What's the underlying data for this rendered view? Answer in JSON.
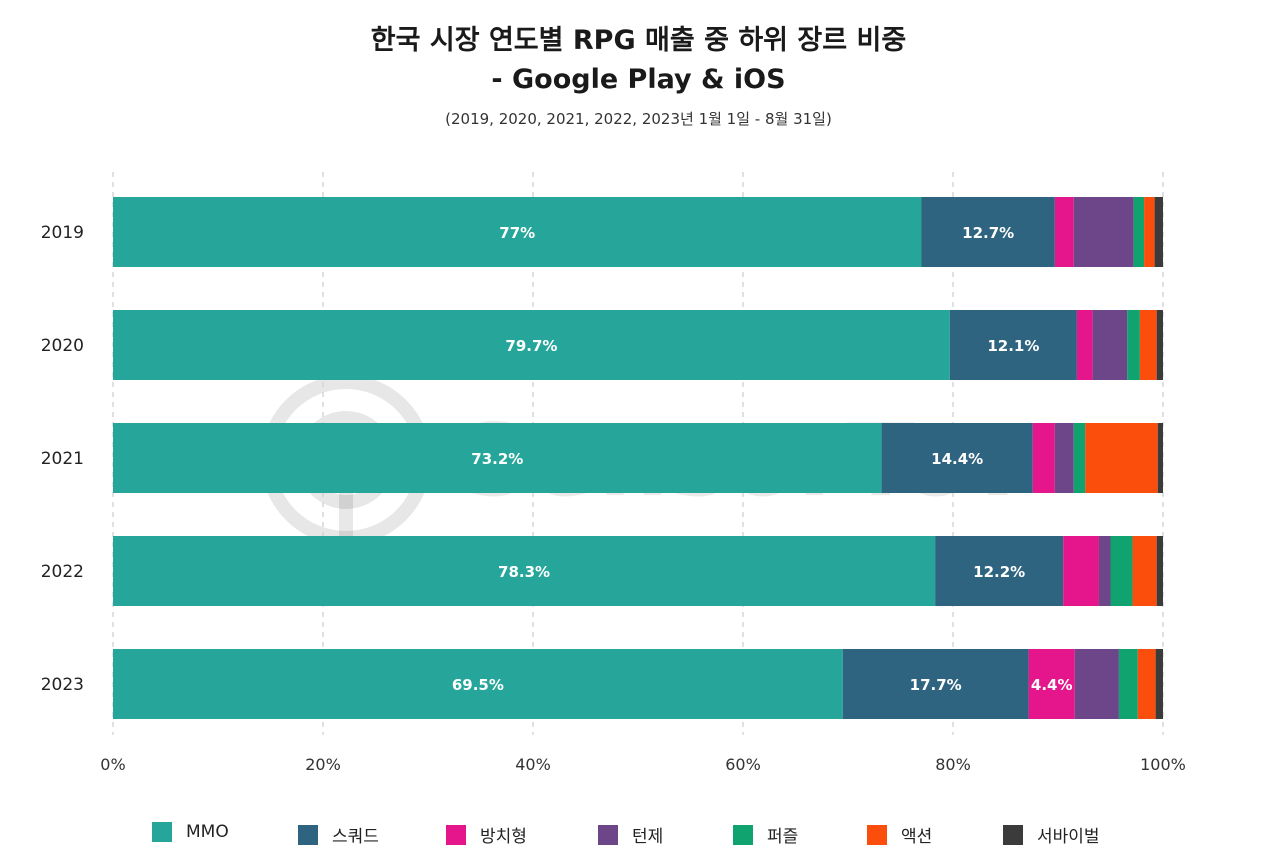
{
  "title_line1": "한국 시장 연도별 RPG 매출 중 하위 장르 비중",
  "title_line2": "- Google Play & iOS",
  "subtitle": "(2019, 2020, 2021, 2022, 2023년 1월 1일 - 8월 31일)",
  "watermark": "SensorTower",
  "chart_data": {
    "type": "bar",
    "orientation": "horizontal",
    "stacked": true,
    "categories": [
      "2019",
      "2020",
      "2021",
      "2022",
      "2023"
    ],
    "series": [
      {
        "name": "MMO",
        "color": "#26a69a",
        "values": [
          77.0,
          79.7,
          73.2,
          78.3,
          69.5
        ]
      },
      {
        "name": "스쿼드",
        "color": "#2e6480",
        "values": [
          12.7,
          12.1,
          14.4,
          12.2,
          17.7
        ]
      },
      {
        "name": "방치형",
        "color": "#e5168b",
        "values": [
          1.8,
          1.5,
          2.1,
          3.4,
          4.4
        ]
      },
      {
        "name": "턴제",
        "color": "#6d4589",
        "values": [
          5.7,
          3.3,
          1.8,
          1.1,
          4.2
        ]
      },
      {
        "name": "퍼즐",
        "color": "#10a36f",
        "values": [
          1.0,
          1.2,
          1.1,
          2.1,
          1.8
        ]
      },
      {
        "name": "액션",
        "color": "#fb4d0b",
        "values": [
          1.0,
          1.6,
          6.9,
          2.3,
          1.7
        ]
      },
      {
        "name": "서바이벌",
        "color": "#3b3b3b",
        "values": [
          0.8,
          0.6,
          0.5,
          0.6,
          0.7
        ]
      }
    ],
    "data_labels": [
      {
        "category": "2019",
        "series": "MMO",
        "text": "77%"
      },
      {
        "category": "2019",
        "series": "스쿼드",
        "text": "12.7%"
      },
      {
        "category": "2020",
        "series": "MMO",
        "text": "79.7%"
      },
      {
        "category": "2020",
        "series": "스쿼드",
        "text": "12.1%"
      },
      {
        "category": "2021",
        "series": "MMO",
        "text": "73.2%"
      },
      {
        "category": "2021",
        "series": "스쿼드",
        "text": "14.4%"
      },
      {
        "category": "2022",
        "series": "MMO",
        "text": "78.3%"
      },
      {
        "category": "2022",
        "series": "스쿼드",
        "text": "12.2%"
      },
      {
        "category": "2023",
        "series": "MMO",
        "text": "69.5%"
      },
      {
        "category": "2023",
        "series": "스쿼드",
        "text": "17.7%"
      },
      {
        "category": "2023",
        "series": "방치형",
        "text": "4.4%"
      }
    ],
    "x_ticks": [
      "0%",
      "20%",
      "40%",
      "60%",
      "80%",
      "100%"
    ],
    "xlim": [
      0,
      100
    ],
    "grid": "vertical dashed",
    "legend_position": "bottom"
  }
}
